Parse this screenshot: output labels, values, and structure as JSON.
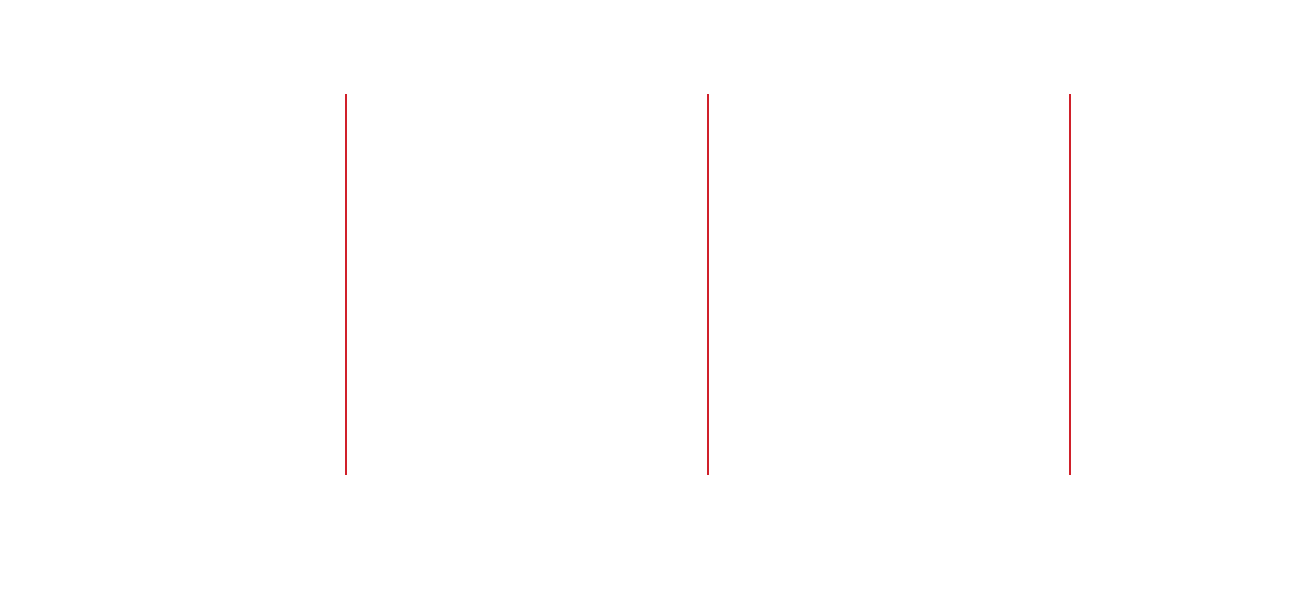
{
  "canvas": {
    "background_color": "#ffffff"
  },
  "dividers": {
    "count": 3,
    "color": "#d0202a",
    "orientation": "vertical"
  }
}
